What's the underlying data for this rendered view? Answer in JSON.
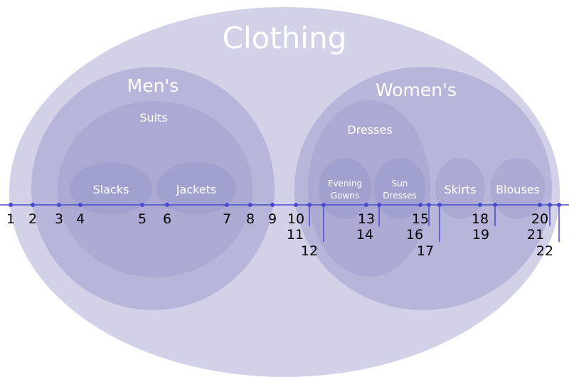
{
  "colors": {
    "level0": "#d1d1e8",
    "level1": "#b6b6da",
    "level2": "#aaaad3",
    "level3": "#a1a1cf",
    "line": "#4a4ad0"
  },
  "sets": {
    "clothing": "Clothing",
    "mens": "Men's",
    "suits": "Suits",
    "slacks": "Slacks",
    "jackets": "Jackets",
    "womens": "Women's",
    "dresses": "Dresses",
    "evening_gowns_1": "Evening",
    "evening_gowns_2": "Gowns",
    "sun_dresses_1": "Sun",
    "sun_dresses_2": "Dresses",
    "skirts": "Skirts",
    "blouses": "Blouses"
  },
  "numbers": [
    "1",
    "2",
    "3",
    "4",
    "5",
    "6",
    "7",
    "8",
    "9",
    "10",
    "11",
    "12",
    "13",
    "14",
    "15",
    "16",
    "17",
    "18",
    "19",
    "20",
    "21",
    "22"
  ]
}
